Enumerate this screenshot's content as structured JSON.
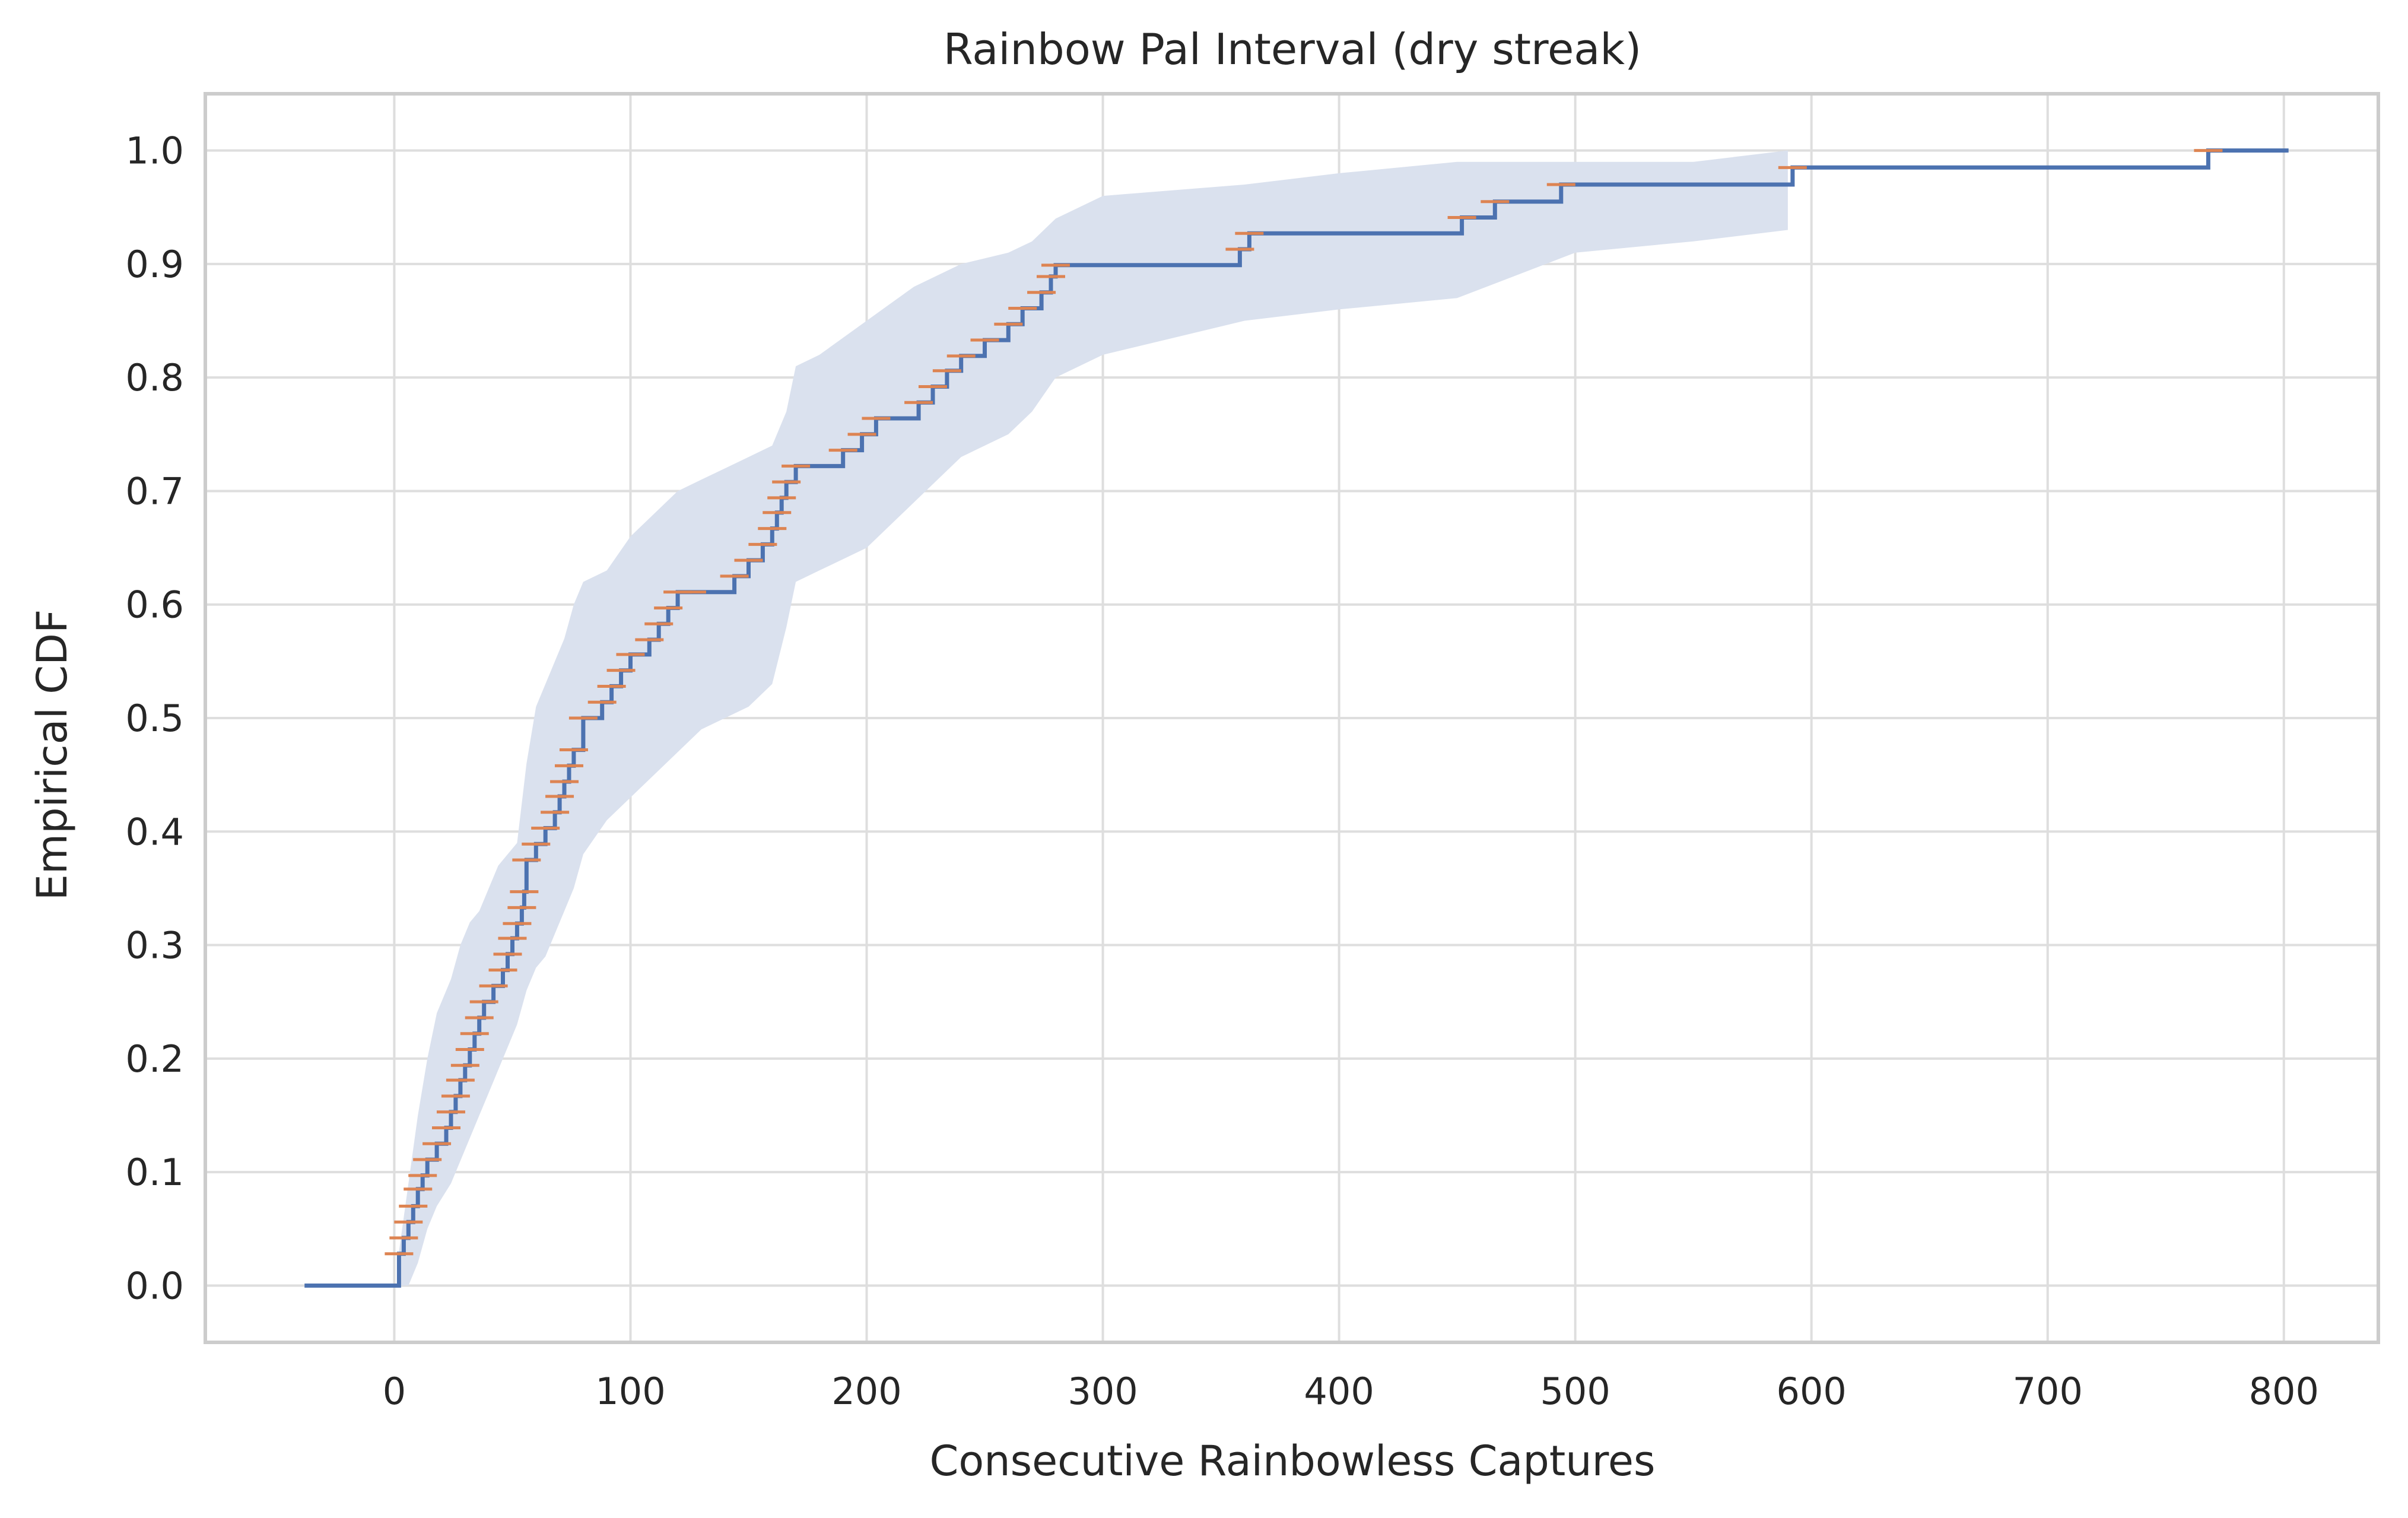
{
  "chart_data": {
    "type": "line",
    "title": "Rainbow Pal Interval (dry streak)",
    "xlabel": "Consecutive Rainbowless Captures",
    "ylabel": "Empirical CDF",
    "xlim": [
      -80,
      840
    ],
    "ylim": [
      -0.05,
      1.05
    ],
    "xticks": [
      0,
      100,
      200,
      300,
      400,
      500,
      600,
      700,
      800
    ],
    "yticks": [
      0.0,
      0.1,
      0.2,
      0.3,
      0.4,
      0.5,
      0.6,
      0.7,
      0.8,
      0.9,
      1.0
    ],
    "xtick_labels": [
      "0",
      "100",
      "200",
      "300",
      "400",
      "500",
      "600",
      "700",
      "800"
    ],
    "ytick_labels": [
      "0.0",
      "0.1",
      "0.2",
      "0.3",
      "0.4",
      "0.5",
      "0.6",
      "0.7",
      "0.8",
      "0.9",
      "1.0"
    ],
    "grid": true,
    "colors": {
      "ecdf": "#4c72b0",
      "band": "#dae1ee",
      "markers": "#dd8452",
      "grid": "#dedede",
      "frame": "#cccccc"
    },
    "series": [
      {
        "style": "step",
        "color": "#4c72b0",
        "x": [
          -38,
          2,
          4,
          6,
          8,
          10,
          12,
          14,
          18,
          22,
          24,
          26,
          28,
          30,
          32,
          34,
          36,
          38,
          42,
          46,
          48,
          50,
          52,
          54,
          55,
          56,
          60,
          64,
          68,
          70,
          72,
          74,
          76,
          80,
          88,
          92,
          96,
          100,
          108,
          112,
          116,
          120,
          126,
          136,
          144,
          150,
          156,
          160,
          162,
          164,
          166,
          170,
          180,
          190,
          198,
          204,
          212,
          222,
          228,
          234,
          240,
          250,
          260,
          266,
          270,
          274,
          278,
          280,
          358,
          362,
          452,
          466,
          494,
          592,
          768,
          802
        ],
        "y": [
          0.0,
          0.028,
          0.042,
          0.056,
          0.07,
          0.085,
          0.097,
          0.111,
          0.125,
          0.139,
          0.153,
          0.167,
          0.181,
          0.194,
          0.208,
          0.222,
          0.236,
          0.25,
          0.264,
          0.278,
          0.292,
          0.306,
          0.319,
          0.333,
          0.347,
          0.375,
          0.389,
          0.403,
          0.417,
          0.431,
          0.444,
          0.458,
          0.472,
          0.5,
          0.514,
          0.528,
          0.542,
          0.556,
          0.569,
          0.583,
          0.597,
          0.611,
          0.611,
          0.611,
          0.625,
          0.639,
          0.653,
          0.667,
          0.681,
          0.694,
          0.708,
          0.722,
          0.722,
          0.736,
          0.75,
          0.764,
          0.764,
          0.778,
          0.792,
          0.806,
          0.819,
          0.833,
          0.847,
          0.861,
          0.861,
          0.875,
          0.889,
          0.899,
          0.913,
          0.927,
          0.941,
          0.955,
          0.97,
          0.985,
          1.0,
          1.0
        ]
      }
    ],
    "band": {
      "color": "#dae1ee",
      "x": [
        2,
        6,
        10,
        14,
        18,
        24,
        28,
        32,
        36,
        40,
        44,
        48,
        52,
        56,
        60,
        64,
        68,
        72,
        76,
        80,
        90,
        100,
        110,
        120,
        130,
        140,
        150,
        160,
        166,
        170,
        180,
        200,
        220,
        240,
        260,
        270,
        280,
        300,
        360,
        400,
        450,
        500,
        550,
        590
      ],
      "lower": [
        0.0,
        0.0,
        0.02,
        0.05,
        0.07,
        0.09,
        0.11,
        0.13,
        0.15,
        0.17,
        0.19,
        0.21,
        0.23,
        0.26,
        0.28,
        0.29,
        0.31,
        0.33,
        0.35,
        0.38,
        0.41,
        0.43,
        0.45,
        0.47,
        0.49,
        0.5,
        0.51,
        0.53,
        0.58,
        0.62,
        0.63,
        0.65,
        0.69,
        0.73,
        0.75,
        0.77,
        0.8,
        0.82,
        0.85,
        0.86,
        0.87,
        0.91,
        0.92,
        0.93
      ],
      "upper": [
        0.03,
        0.09,
        0.15,
        0.2,
        0.24,
        0.27,
        0.3,
        0.32,
        0.33,
        0.35,
        0.37,
        0.38,
        0.39,
        0.46,
        0.51,
        0.53,
        0.55,
        0.57,
        0.6,
        0.62,
        0.63,
        0.66,
        0.68,
        0.7,
        0.71,
        0.72,
        0.73,
        0.74,
        0.77,
        0.81,
        0.82,
        0.85,
        0.88,
        0.9,
        0.91,
        0.92,
        0.94,
        0.96,
        0.97,
        0.98,
        0.99,
        0.99,
        0.99,
        1.0
      ]
    },
    "markers": {
      "style": "hline",
      "color": "#dd8452",
      "x": [
        2,
        4,
        6,
        8,
        10,
        12,
        14,
        18,
        22,
        24,
        26,
        28,
        30,
        32,
        34,
        36,
        38,
        42,
        46,
        48,
        50,
        52,
        54,
        55,
        56,
        60,
        64,
        68,
        70,
        72,
        74,
        76,
        80,
        88,
        92,
        96,
        100,
        108,
        112,
        116,
        120,
        126,
        144,
        150,
        156,
        160,
        162,
        164,
        166,
        170,
        190,
        198,
        204,
        222,
        228,
        234,
        240,
        250,
        260,
        266,
        274,
        278,
        280,
        358,
        362,
        452,
        466,
        494,
        592,
        768
      ],
      "y": [
        0.028,
        0.042,
        0.056,
        0.07,
        0.085,
        0.097,
        0.111,
        0.125,
        0.139,
        0.153,
        0.167,
        0.181,
        0.194,
        0.208,
        0.222,
        0.236,
        0.25,
        0.264,
        0.278,
        0.292,
        0.306,
        0.319,
        0.333,
        0.347,
        0.375,
        0.389,
        0.403,
        0.417,
        0.431,
        0.444,
        0.458,
        0.472,
        0.5,
        0.514,
        0.528,
        0.542,
        0.556,
        0.569,
        0.583,
        0.597,
        0.611,
        0.611,
        0.625,
        0.639,
        0.653,
        0.667,
        0.681,
        0.694,
        0.708,
        0.722,
        0.736,
        0.75,
        0.764,
        0.778,
        0.792,
        0.806,
        0.819,
        0.833,
        0.847,
        0.861,
        0.875,
        0.889,
        0.899,
        0.913,
        0.927,
        0.941,
        0.955,
        0.97,
        0.985,
        1.0
      ]
    }
  }
}
